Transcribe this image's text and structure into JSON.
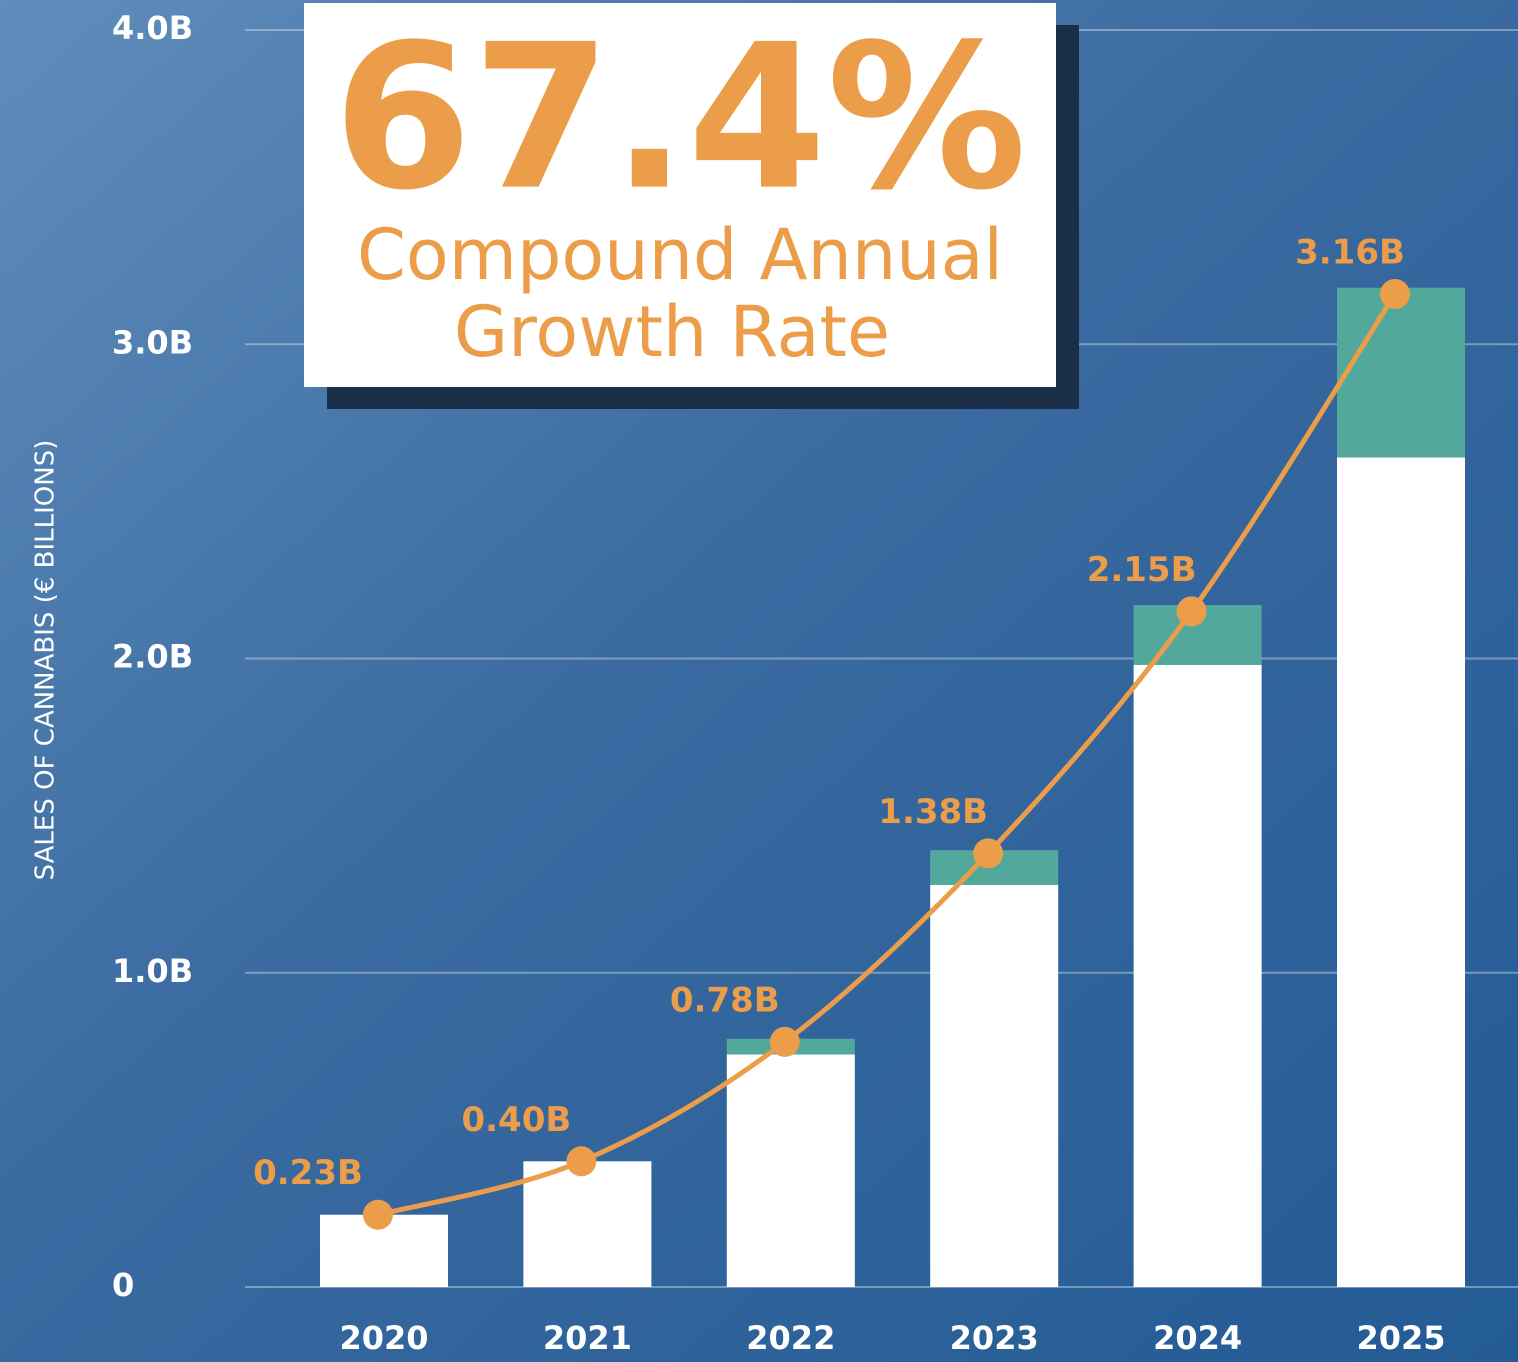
{
  "chart_data": {
    "type": "bar_line",
    "y_axis_label": "SALES OF CANNABIS (€ BILLIONS)",
    "annotation": {
      "headline": "67.4%",
      "lines": [
        "Compound Annual",
        "Growth Rate"
      ]
    },
    "categories": [
      "2020",
      "2021",
      "2022",
      "2023",
      "2024",
      "2025"
    ],
    "series": [
      {
        "color": "#ffffff",
        "values": [
          0.23,
          0.4,
          0.74,
          1.28,
          1.98,
          2.64
        ]
      },
      {
        "color": "#52a99b",
        "values": [
          0,
          0,
          0.05,
          0.11,
          0.19,
          0.54
        ]
      }
    ],
    "line": {
      "color": "#eb9d4a",
      "values": [
        0.23,
        0.4,
        0.78,
        1.38,
        2.15,
        3.16
      ],
      "value_labels": [
        "0.23B",
        "0.40B",
        "0.78B",
        "1.38B",
        "2.15B",
        "3.16B"
      ]
    },
    "ylim": [
      0,
      4
    ],
    "yticks": [
      0,
      {
        "value": 1,
        "label": "1.0B"
      },
      {
        "value": 2,
        "label": "2.0B"
      },
      {
        "value": 3,
        "label": "3.0B"
      },
      {
        "value": 4,
        "label": "4.0B"
      }
    ],
    "grid": true
  }
}
